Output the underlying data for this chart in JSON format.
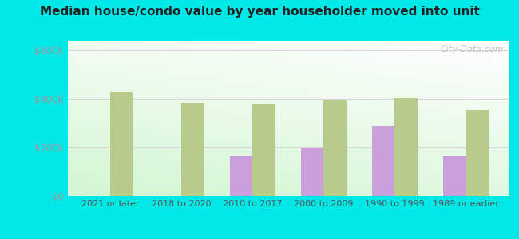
{
  "title": "Median house/condo value by year householder moved into unit",
  "categories": [
    "2021 or later",
    "2018 to 2020",
    "2010 to 2017",
    "2000 to 2009",
    "1990 to 1999",
    "1989 or earlier"
  ],
  "horseheads_north": [
    null,
    null,
    163000,
    198000,
    290000,
    163000
  ],
  "new_york": [
    430000,
    385000,
    382000,
    393000,
    403000,
    353000
  ],
  "color_horseheads": "#c9a0dc",
  "color_newyork": "#b8cb8c",
  "background_outer": "#00e8e8",
  "ylabel_color": "#999999",
  "yticks": [
    0,
    200000,
    400000,
    600000
  ],
  "ytick_labels": [
    "$0",
    "$200k",
    "$400k",
    "$600k"
  ],
  "bar_width": 0.32,
  "watermark": "City-Data.com"
}
